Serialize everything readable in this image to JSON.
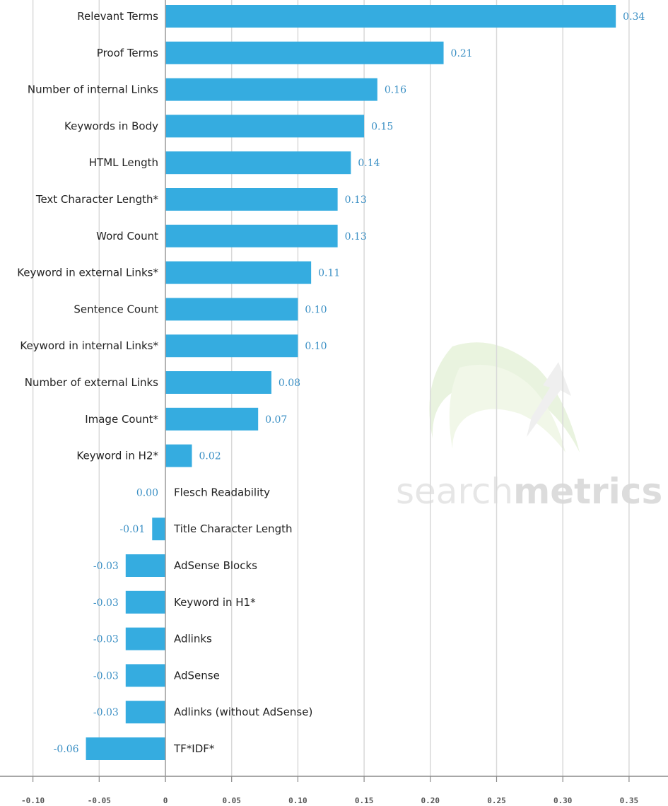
{
  "watermark": {
    "light": "search",
    "bold": "metrics"
  },
  "colors": {
    "bar": "#35ace0",
    "value_label": "#3a8fc4",
    "grid": "#d9d9d9",
    "axis": "#8a8a8a",
    "zero_line": "#9a9a9a"
  },
  "chart_data": {
    "type": "bar",
    "orientation": "horizontal",
    "categories": [
      "Relevant Terms",
      "Proof Terms",
      "Number of internal Links",
      "Keywords in Body",
      "HTML Length",
      "Text Character Length*",
      "Word Count",
      "Keyword in external Links*",
      "Sentence Count",
      "Keyword in internal Links*",
      "Number of external Links",
      "Image Count*",
      "Keyword in H2*",
      "Flesch Readability",
      "Title Character Length",
      "AdSense Blocks",
      "Keyword in H1*",
      "Adlinks",
      "AdSense",
      "Adlinks (without AdSense)",
      "TF*IDF*"
    ],
    "values": [
      0.34,
      0.21,
      0.16,
      0.15,
      0.14,
      0.13,
      0.13,
      0.11,
      0.1,
      0.1,
      0.08,
      0.07,
      0.02,
      0.0,
      -0.01,
      -0.03,
      -0.03,
      -0.03,
      -0.03,
      -0.03,
      -0.06
    ],
    "value_labels": [
      "0.34",
      "0.21",
      "0.16",
      "0.15",
      "0.14",
      "0.13",
      "0.13",
      "0.11",
      "0.10",
      "0.10",
      "0.08",
      "0.07",
      "0.02",
      "0.00",
      "-0.01",
      "-0.03",
      "-0.03",
      "-0.03",
      "-0.03",
      "-0.03",
      "-0.06"
    ],
    "xlim": [
      -0.1,
      0.35
    ],
    "xticks": [
      -0.1,
      -0.05,
      0,
      0.05,
      0.1,
      0.15,
      0.2,
      0.25,
      0.3,
      0.35
    ],
    "xtick_labels": [
      "-0.10",
      "-0.05",
      "0",
      "0.05",
      "0.10",
      "0.15",
      "0.20",
      "0.25",
      "0.30",
      "0.35"
    ],
    "grid": true,
    "legend": "none",
    "title": "",
    "xlabel": "",
    "ylabel": ""
  }
}
